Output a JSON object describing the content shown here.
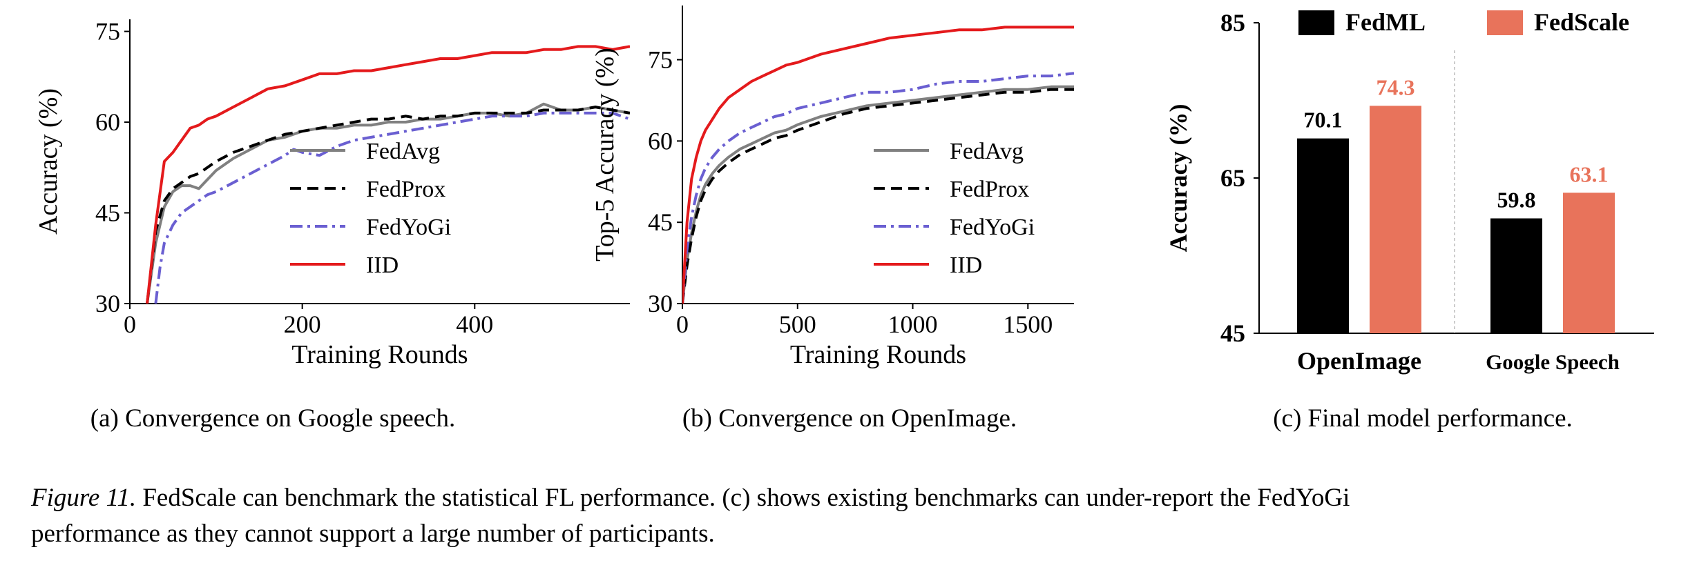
{
  "chart_data": [
    {
      "type": "line",
      "caption": "(a) Convergence on Google speech.",
      "xlabel": "Training Rounds",
      "ylabel": "Accuracy (%)",
      "xlim": [
        0,
        580
      ],
      "ylim": [
        30,
        77
      ],
      "xticks": [
        0,
        200,
        400
      ],
      "yticks": [
        30,
        45,
        60,
        75
      ],
      "grid": false,
      "legend_position": "center-right",
      "series": [
        {
          "name": "FedAvg",
          "color": "#808080",
          "dash": "solid",
          "x": [
            20,
            30,
            40,
            50,
            60,
            70,
            80,
            90,
            100,
            120,
            140,
            160,
            180,
            200,
            220,
            240,
            260,
            280,
            300,
            320,
            340,
            360,
            380,
            400,
            420,
            440,
            460,
            480,
            500,
            520,
            540,
            560,
            580
          ],
          "y": [
            30,
            40,
            46,
            48.5,
            49.5,
            49.5,
            49,
            50.5,
            52,
            54,
            55.5,
            57,
            57.5,
            58.5,
            59,
            59,
            59.5,
            59.5,
            60,
            60,
            60.5,
            60.5,
            61,
            61.5,
            61.5,
            61,
            61.5,
            63,
            62,
            62,
            62.5,
            62,
            61.5
          ]
        },
        {
          "name": "FedProx",
          "color": "#000000",
          "dash": "dashed",
          "x": [
            20,
            30,
            40,
            50,
            60,
            70,
            80,
            90,
            100,
            120,
            140,
            160,
            180,
            200,
            220,
            240,
            260,
            280,
            300,
            320,
            340,
            360,
            380,
            400,
            420,
            440,
            460,
            480,
            500,
            520,
            540,
            560,
            580
          ],
          "y": [
            30,
            42,
            47,
            49,
            50,
            51,
            51.5,
            52.5,
            53.5,
            55,
            56,
            57,
            58,
            58.5,
            59,
            59.5,
            60,
            60.5,
            60.5,
            61,
            60.5,
            61,
            61,
            61.5,
            61.5,
            61.5,
            61.5,
            62,
            62,
            62,
            62.5,
            62,
            61.5
          ]
        },
        {
          "name": "FedYoGi",
          "color": "#6a5fd1",
          "dash": "dashdot",
          "x": [
            30,
            35,
            40,
            50,
            60,
            70,
            80,
            90,
            100,
            120,
            140,
            160,
            180,
            190,
            200,
            220,
            240,
            260,
            280,
            300,
            320,
            340,
            360,
            380,
            400,
            420,
            440,
            460,
            480,
            500,
            520,
            540,
            560,
            580
          ],
          "y": [
            30,
            36,
            40,
            43,
            45,
            46,
            47,
            48,
            48.5,
            50,
            51.5,
            53,
            54.5,
            55.5,
            55,
            54.5,
            56,
            57,
            57.5,
            58,
            58.5,
            59,
            59.5,
            60,
            60.5,
            61,
            61,
            61,
            61.5,
            61.5,
            61.5,
            61.5,
            61.5,
            60.5
          ]
        },
        {
          "name": "IID",
          "color": "#e41a1c",
          "dash": "solid",
          "x": [
            20,
            30,
            40,
            50,
            60,
            70,
            80,
            90,
            100,
            120,
            140,
            160,
            180,
            200,
            220,
            240,
            260,
            280,
            300,
            320,
            340,
            360,
            380,
            400,
            420,
            440,
            460,
            480,
            500,
            520,
            540,
            560,
            580
          ],
          "y": [
            30,
            43,
            53.5,
            55,
            57,
            59,
            59.5,
            60.5,
            61,
            62.5,
            64,
            65.5,
            66,
            67,
            68,
            68,
            68.5,
            68.5,
            69,
            69.5,
            70,
            70.5,
            70.5,
            71,
            71.5,
            71.5,
            71.5,
            72,
            72,
            72.5,
            72.5,
            72,
            72.5
          ]
        }
      ]
    },
    {
      "type": "line",
      "caption": "(b) Convergence on OpenImage.",
      "xlabel": "Training Rounds",
      "ylabel": "Top-5 Accuracy (%)",
      "xlim": [
        0,
        1700
      ],
      "ylim": [
        30,
        85
      ],
      "xticks": [
        0,
        500,
        1000,
        1500
      ],
      "yticks": [
        30,
        45,
        60,
        75
      ],
      "grid": false,
      "legend_position": "center-right",
      "series": [
        {
          "name": "FedAvg",
          "color": "#808080",
          "dash": "solid",
          "x": [
            0,
            20,
            40,
            60,
            80,
            100,
            130,
            160,
            200,
            250,
            300,
            350,
            400,
            450,
            500,
            600,
            700,
            800,
            900,
            1000,
            1100,
            1200,
            1300,
            1400,
            1500,
            1600,
            1700
          ],
          "y": [
            30,
            38,
            43,
            47,
            50,
            52,
            54,
            55.5,
            57,
            58.5,
            59.5,
            60.5,
            61.5,
            62,
            63,
            64.5,
            65.5,
            66.5,
            67,
            67.5,
            68,
            68.5,
            69,
            69.5,
            69.5,
            70,
            70
          ]
        },
        {
          "name": "FedProx",
          "color": "#000000",
          "dash": "dashed",
          "x": [
            0,
            20,
            40,
            60,
            80,
            100,
            130,
            160,
            200,
            250,
            300,
            350,
            400,
            450,
            500,
            600,
            700,
            800,
            900,
            1000,
            1100,
            1200,
            1300,
            1400,
            1500,
            1600,
            1700
          ],
          "y": [
            30,
            37,
            42,
            46,
            49,
            51,
            53,
            54.5,
            56,
            57.5,
            58.5,
            59.5,
            60.5,
            61,
            62,
            63.5,
            65,
            66,
            66.5,
            67,
            67.5,
            68,
            68.5,
            69,
            69,
            69.5,
            69.5
          ]
        },
        {
          "name": "FedYoGi",
          "color": "#6a5fd1",
          "dash": "dashdot",
          "x": [
            0,
            20,
            40,
            60,
            80,
            100,
            130,
            160,
            200,
            250,
            300,
            350,
            400,
            450,
            500,
            600,
            700,
            800,
            900,
            1000,
            1100,
            1200,
            1300,
            1400,
            1500,
            1600,
            1700
          ],
          "y": [
            30,
            40,
            46,
            50,
            53,
            55,
            57,
            58.5,
            60,
            61.5,
            62.5,
            63.5,
            64.5,
            65,
            66,
            67,
            68,
            69,
            69,
            69.5,
            70.5,
            71,
            71,
            71.5,
            72,
            72,
            72.5
          ]
        },
        {
          "name": "IID",
          "color": "#e41a1c",
          "dash": "solid",
          "x": [
            0,
            20,
            40,
            60,
            80,
            100,
            130,
            160,
            200,
            250,
            300,
            350,
            400,
            450,
            500,
            600,
            700,
            800,
            900,
            1000,
            1100,
            1200,
            1300,
            1400,
            1500,
            1600,
            1700
          ],
          "y": [
            30,
            45,
            53,
            57,
            60,
            62,
            64,
            66,
            68,
            69.5,
            71,
            72,
            73,
            74,
            74.5,
            76,
            77,
            78,
            79,
            79.5,
            80,
            80.5,
            80.5,
            81,
            81,
            81,
            81
          ]
        }
      ]
    },
    {
      "type": "bar",
      "caption": "(c) Final model performance.",
      "ylabel": "Accuracy (%)",
      "ylim": [
        45,
        85
      ],
      "yticks": [
        45,
        65,
        85
      ],
      "categories": [
        "OpenImage",
        "Google Speech"
      ],
      "legend_position": "top",
      "series": [
        {
          "name": "FedML",
          "color": "#000000",
          "label_color": "#000000",
          "values": [
            70.1,
            59.8
          ],
          "labels": [
            "70.1",
            "59.8"
          ]
        },
        {
          "name": "FedScale",
          "color": "#e8735b",
          "label_color": "#e8735b",
          "values": [
            74.3,
            63.1
          ],
          "labels": [
            "74.3",
            "63.1"
          ]
        }
      ]
    }
  ],
  "figure_caption": {
    "label": "Figure 11.",
    "line1": "FedScale can benchmark the statistical FL performance.  (c) shows existing benchmarks can under-report the FedYoGi",
    "line2": "performance as they cannot support a large number of participants."
  }
}
